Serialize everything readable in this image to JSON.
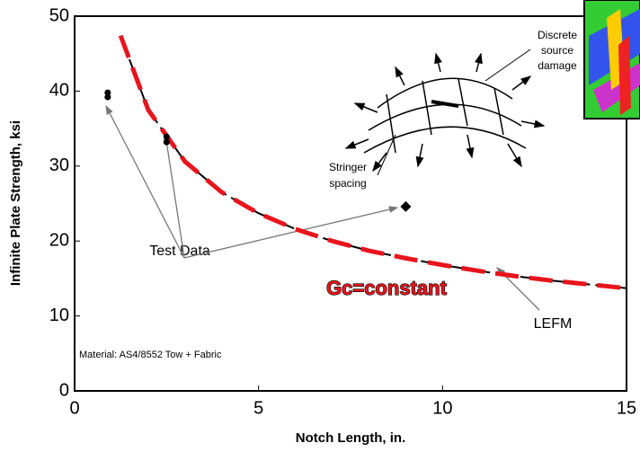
{
  "chart_data": {
    "type": "scatter",
    "xlabel": "Notch Length, in.",
    "ylabel": "Infinite Plate Strength, ksi",
    "xlim": [
      0,
      15
    ],
    "xticks": [
      0,
      5,
      10,
      15
    ],
    "ylim": [
      0,
      50
    ],
    "yticks": [
      0,
      10,
      20,
      30,
      40,
      50
    ],
    "points": {
      "x": [
        0.9,
        0.9,
        2.5,
        2.5,
        9.0
      ],
      "values": [
        39.8,
        39.2,
        33.9,
        33.2,
        24.6
      ],
      "color": "#000000"
    },
    "curve": {
      "x": [
        1.25,
        2,
        3,
        4,
        5,
        6,
        7,
        8,
        9,
        10,
        11,
        12,
        13,
        14,
        15
      ],
      "values": [
        47.4,
        37.5,
        30.6,
        26.5,
        23.7,
        21.6,
        20.0,
        18.7,
        17.7,
        16.8,
        16.0,
        15.3,
        14.7,
        14.2,
        13.7
      ],
      "color": "#e8141c"
    },
    "annotations": {
      "test_data": "Test Data",
      "gc": "Gc=constant",
      "lefm": "LEFM",
      "material": "Material:  AS4/8552 Tow + Fabric",
      "stringer": [
        "Stringer",
        "spacing"
      ],
      "damage": [
        "Discrete",
        "source",
        "damage"
      ]
    }
  }
}
